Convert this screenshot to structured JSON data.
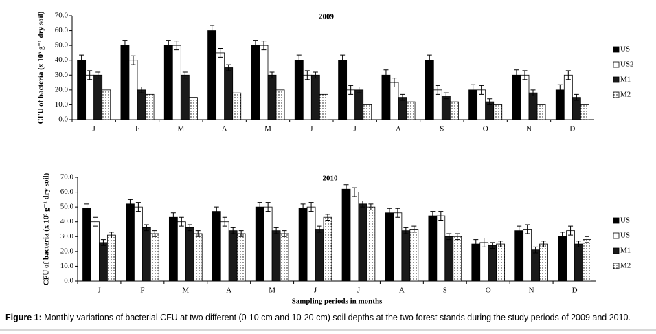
{
  "chart_data": [
    {
      "type": "bar",
      "title": "2009",
      "ylabel": "CFU of bacteria (x 10⁵ g⁻¹ dry soil)",
      "categories": [
        "J",
        "F",
        "M",
        "A",
        "M",
        "J",
        "J",
        "A",
        "S",
        "O",
        "N",
        "D"
      ],
      "series": [
        {
          "name": "US",
          "color": "#000000",
          "values": [
            40,
            50,
            50,
            60,
            50,
            40,
            40,
            30,
            40,
            20,
            30,
            20
          ],
          "errors": [
            3.5,
            3.5,
            3.5,
            3.5,
            3.5,
            3.5,
            3.5,
            3.5,
            3.5,
            3.5,
            3.5,
            3.5
          ]
        },
        {
          "name": "US2",
          "color": "#ffffff",
          "values": [
            30,
            40,
            50,
            45,
            50,
            30,
            20,
            25,
            20,
            20,
            30,
            30
          ],
          "errors": [
            3,
            3,
            3,
            3,
            3,
            3,
            3,
            3,
            3,
            3,
            3,
            3
          ]
        },
        {
          "name": "M1",
          "color": "#1a1a1a",
          "values": [
            30,
            20,
            30,
            35,
            30,
            30,
            20,
            15,
            16,
            12,
            18,
            15
          ],
          "errors": [
            2,
            2,
            2,
            2,
            2,
            2,
            2,
            2,
            2,
            2,
            2,
            2
          ]
        },
        {
          "name": "M2",
          "color": "#ffffff",
          "values": [
            20,
            17,
            15,
            18,
            20,
            17,
            10,
            12,
            12,
            10,
            10,
            10
          ]
        }
      ],
      "ylim": [
        0,
        70
      ],
      "yticks": [
        {
          "value": 0,
          "label": "0.0"
        },
        {
          "value": 10,
          "label": "10.0"
        },
        {
          "value": 20,
          "label": "20.0"
        },
        {
          "value": 30,
          "label": "30.0"
        },
        {
          "value": 40,
          "label": "40.0"
        },
        {
          "value": 50,
          "label": "50.0"
        },
        {
          "value": 60,
          "label": "60.0"
        },
        {
          "value": 70,
          "label": "70.0"
        }
      ],
      "legend": "right"
    },
    {
      "type": "bar",
      "title": "2010",
      "ylabel": "CFU of bacteria (x 10⁵ g⁻¹ dry soil)",
      "xlabel": "Sampling periods in months",
      "categories": [
        "J",
        "F",
        "M",
        "A",
        "M",
        "J",
        "J",
        "A",
        "S",
        "O",
        "N",
        "D"
      ],
      "series": [
        {
          "name": "US",
          "color": "#000000",
          "values": [
            49,
            52,
            43,
            47,
            50,
            49,
            62,
            46,
            44,
            25,
            34,
            30
          ],
          "errors": [
            3,
            3,
            3,
            3,
            3,
            3,
            3,
            3,
            3,
            3,
            3,
            3
          ]
        },
        {
          "name": "US",
          "color": "#ffffff",
          "values": [
            40,
            50,
            40,
            40,
            50,
            50,
            60,
            46,
            44,
            26,
            35,
            34
          ],
          "errors": [
            3,
            3,
            3,
            3,
            3,
            3,
            3,
            3,
            3,
            3,
            3,
            3
          ]
        },
        {
          "name": "M1",
          "color": "#1a1a1a",
          "values": [
            26,
            36,
            36,
            34,
            34,
            35,
            52,
            34,
            30,
            24,
            21,
            25
          ],
          "errors": [
            2,
            2,
            2,
            2,
            2,
            2,
            2,
            2,
            2,
            2,
            2,
            2
          ]
        },
        {
          "name": "M2",
          "color": "#ffffff",
          "values": [
            31,
            32,
            32,
            32,
            32,
            43,
            50,
            35,
            30,
            25,
            25,
            28
          ],
          "errors": [
            2,
            2,
            2,
            2,
            2,
            2,
            2,
            2,
            2,
            2,
            2,
            2
          ]
        }
      ],
      "ylim": [
        0,
        70
      ],
      "yticks": [
        {
          "value": 0,
          "label": "0.0"
        },
        {
          "value": 10,
          "label": "10.0"
        },
        {
          "value": 20,
          "label": "20.0"
        },
        {
          "value": 30,
          "label": "30.0"
        },
        {
          "value": 40,
          "label": "40.0"
        },
        {
          "value": 50,
          "label": "50.0"
        },
        {
          "value": 60,
          "label": "60.0"
        },
        {
          "value": 70,
          "label": "70.0"
        }
      ],
      "legend": "right"
    }
  ],
  "caption": {
    "label": "Figure 1:",
    "text": "Monthly variations of bacterial CFU at two different (0-10 cm and 10-20 cm) soil depths at the two forest stands during the study periods of 2009 and 2010."
  }
}
